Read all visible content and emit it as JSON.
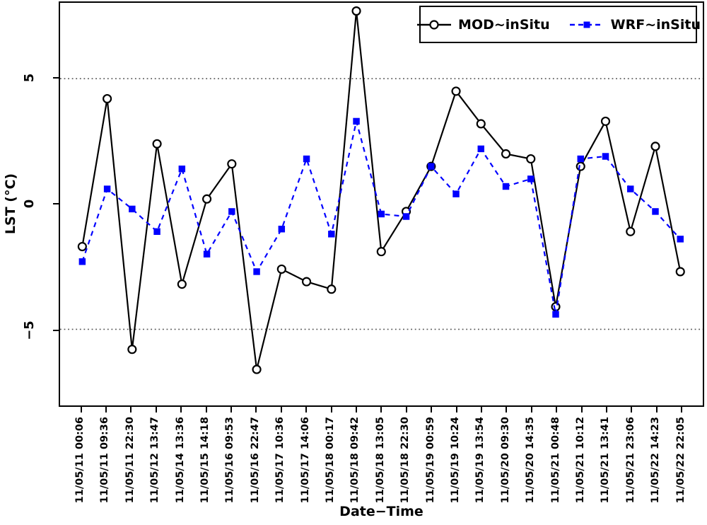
{
  "chart_data": {
    "type": "line",
    "title": "",
    "xlabel": "Date−Time",
    "ylabel": "LST (°C)",
    "x_tick_labels": [
      "11/05/11 00:06",
      "11/05/11 09:36",
      "11/05/11 22:30",
      "11/05/12 13:47",
      "11/05/14 13:36",
      "11/05/15 14:18",
      "11/05/16 09:53",
      "11/05/16 22:47",
      "11/05/17 10:36",
      "11/05/17 14:06",
      "11/05/18 00:17",
      "11/05/18 09:42",
      "11/05/18 13:05",
      "11/05/18 22:30",
      "11/05/19 00:59",
      "11/05/19 10:24",
      "11/05/19 13:54",
      "11/05/20 09:30",
      "11/05/20 14:35",
      "11/05/21 00:48",
      "11/05/21 10:12",
      "11/05/21 13:41",
      "11/05/21 23:06",
      "11/05/22 14:23",
      "11/05/22 22:05"
    ],
    "y_ticks": [
      {
        "value": 5,
        "label": "5"
      },
      {
        "value": 0,
        "label": "0"
      },
      {
        "value": -5,
        "label": "−5"
      }
    ],
    "ylim": [
      -8,
      8
    ],
    "grid_y_values": [
      5,
      -5
    ],
    "grid_style": "dotted",
    "legend_position": "top-right",
    "series": [
      {
        "name": "MOD~inSitu",
        "color": "#000000",
        "line_style": "solid",
        "marker": "open-circle",
        "values": [
          -1.7,
          4.2,
          -5.8,
          2.4,
          -3.2,
          0.2,
          1.6,
          -6.6,
          -2.6,
          -3.1,
          -3.4,
          7.7,
          -1.9,
          -0.3,
          1.5,
          4.5,
          3.2,
          2.0,
          1.8,
          -4.1,
          1.5,
          3.3,
          -1.1,
          2.3,
          -2.7
        ]
      },
      {
        "name": "WRF~inSitu",
        "color": "#0000ff",
        "line_style": "dashed",
        "marker": "filled-square",
        "values": [
          -2.3,
          0.6,
          -0.2,
          -1.1,
          1.4,
          -2.0,
          -0.3,
          -2.7,
          -1.0,
          1.8,
          -1.2,
          3.3,
          -0.4,
          -0.5,
          1.5,
          0.4,
          2.2,
          0.7,
          1.0,
          -4.4,
          1.8,
          1.9,
          0.6,
          -0.3,
          -1.4
        ]
      }
    ],
    "colors": {
      "axis": "#000000",
      "grid": "#555555",
      "background": "#ffffff"
    }
  }
}
